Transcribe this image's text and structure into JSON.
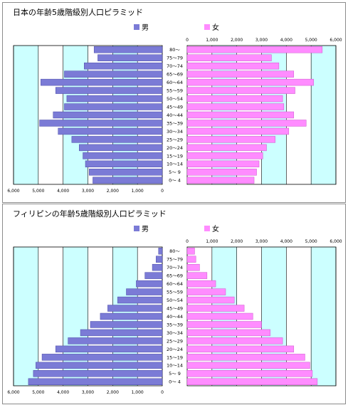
{
  "chart_data": [
    {
      "type": "bar",
      "title": "日本の年齢5歳階級別人口ピラミッド",
      "legend": {
        "male": "男",
        "female": "女",
        "placement": "top"
      },
      "age_groups": [
        "0～ 4",
        "5～ 9",
        "10～14",
        "15～19",
        "20～24",
        "25～29",
        "30～34",
        "35～39",
        "40～44",
        "45～49",
        "50～54",
        "55～59",
        "60～64",
        "65～69",
        "70～74",
        "75～79",
        "80～"
      ],
      "male_ticks": [
        "6,000",
        "5,000",
        "4,000",
        "3,000",
        "2,000",
        "1,000",
        "0"
      ],
      "female_ticks": [
        "0",
        "1,000",
        "2,000",
        "3,000",
        "4,000",
        "5,000",
        "6,000"
      ],
      "xlim": [
        0,
        6000
      ],
      "grid": true,
      "series": [
        {
          "name": "男",
          "values": [
            2800,
            2950,
            3100,
            3200,
            3350,
            3650,
            4200,
            4950,
            4400,
            3950,
            3850,
            4300,
            4900,
            3950,
            3150,
            2600,
            2750
          ]
        },
        {
          "name": "女",
          "values": [
            2700,
            2800,
            2900,
            3050,
            3200,
            3550,
            4100,
            4800,
            4300,
            3900,
            3850,
            4350,
            5100,
            4300,
            3700,
            3400,
            5450
          ]
        }
      ]
    },
    {
      "type": "bar",
      "title": "フィリピンの年齢5歳階級別人口ピラミッド",
      "legend": {
        "male": "男",
        "female": "女",
        "placement": "top"
      },
      "age_groups": [
        "0～ 4",
        "5～ 9",
        "10～14",
        "15～19",
        "20～24",
        "25～29",
        "30～34",
        "35～39",
        "40～44",
        "45～49",
        "50～54",
        "55～59",
        "60～64",
        "65～69",
        "70～74",
        "75～79",
        "80～"
      ],
      "male_ticks": [
        "6,000",
        "5,000",
        "4,000",
        "3,000",
        "2,000",
        "1,000",
        "0"
      ],
      "female_ticks": [
        "0",
        "1,000",
        "2,000",
        "3,000",
        "4,000",
        "5,000",
        "6,000"
      ],
      "xlim": [
        0,
        6000
      ],
      "grid": true,
      "series": [
        {
          "name": "男",
          "values": [
            5400,
            5200,
            5100,
            4850,
            4300,
            3800,
            3300,
            2900,
            2500,
            2200,
            1800,
            1450,
            1050,
            700,
            400,
            250,
            150
          ]
        },
        {
          "name": "女",
          "values": [
            5250,
            5050,
            4950,
            4750,
            4300,
            3850,
            3350,
            3000,
            2650,
            2300,
            1900,
            1550,
            1150,
            800,
            500,
            350,
            300
          ]
        }
      ]
    }
  ],
  "colors": {
    "male": "#7b7bd6",
    "female": "#ff8cff",
    "bg_band": "#ccffff"
  }
}
